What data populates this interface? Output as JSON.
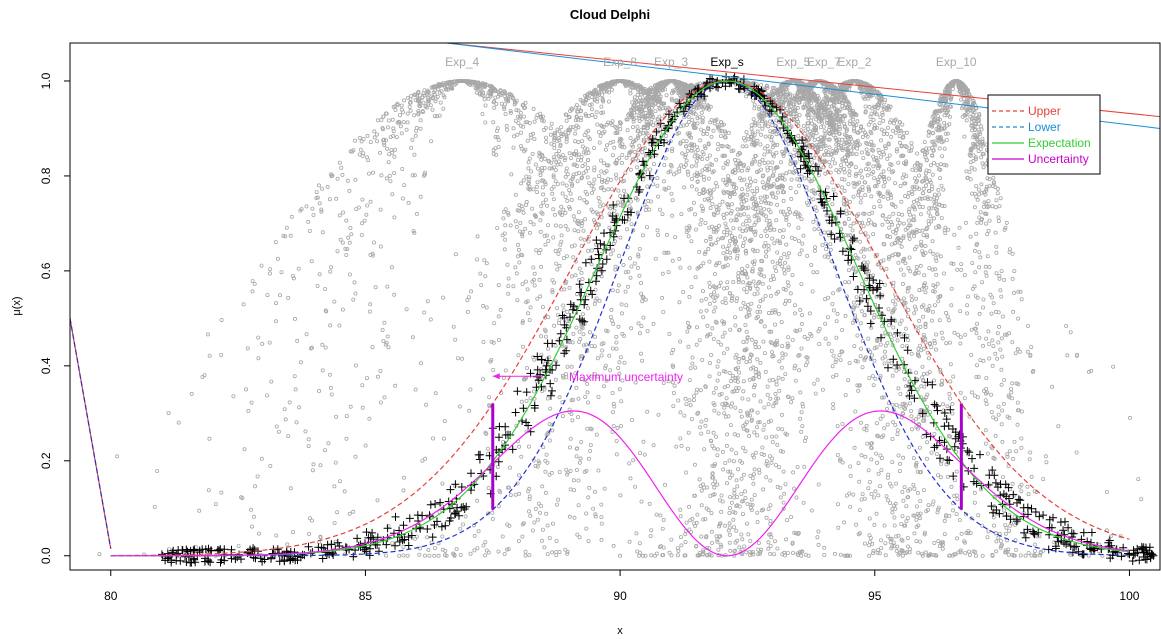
{
  "chart_data": {
    "type": "scatter",
    "title": "Cloud Delphi",
    "xlabel": "x",
    "ylabel": "μ(x)",
    "xlim": [
      79.2,
      100.6
    ],
    "ylim": [
      -0.03,
      1.08
    ],
    "x_ticks": [
      80,
      85,
      90,
      95,
      100
    ],
    "y_ticks": [
      0.0,
      0.2,
      0.4,
      0.6,
      0.8,
      1.0
    ],
    "grid": false,
    "legend_position": "top-right",
    "legend": [
      {
        "label": "Upper",
        "color": "#e8403c",
        "style": "dashed"
      },
      {
        "label": "Lower",
        "color": "#1a8fd6",
        "style": "dashed"
      },
      {
        "label": "Expectation",
        "color": "#33cc33",
        "style": "solid"
      },
      {
        "label": "Uncertainty",
        "color": "#cc00cc",
        "style": "solid"
      }
    ],
    "experts": [
      {
        "name": "Exp_4",
        "center": 86.9,
        "width": 1.9
      },
      {
        "name": "Exp_8",
        "center": 90.0,
        "width": 1.3
      },
      {
        "name": "Exp_3",
        "center": 91.0,
        "width": 1.1
      },
      {
        "name": "Exp_s",
        "center": 92.1,
        "width": 2.6
      },
      {
        "name": "Exp_5",
        "center": 93.4,
        "width": 0.9
      },
      {
        "name": "Exp_7",
        "center": 93.9,
        "width": 0.9
      },
      {
        "name": "Exp_2",
        "center": 94.6,
        "width": 1.0
      },
      {
        "name": "Exp_10",
        "center": 96.6,
        "width": 0.55
      }
    ],
    "expectation": {
      "center": 92.1,
      "width": 2.56
    },
    "upper": {
      "center": 92.1,
      "width": 3.05
    },
    "lower": {
      "center": 92.1,
      "width": 2.13
    },
    "uncertainty": {
      "center": 92.1,
      "width": 2.56,
      "peak": 0.305
    },
    "range": [
      80,
      100
    ],
    "maximum_uncertainty_x": [
      87.5,
      96.7
    ],
    "upper_line": {
      "x": [
        86.6,
        100.6
      ],
      "y": [
        1.08,
        0.925
      ]
    },
    "lower_line": {
      "x": [
        86.6,
        100.6
      ],
      "y": [
        1.08,
        0.9
      ]
    },
    "left_edge_line": {
      "x": [
        79.2,
        80.0
      ],
      "y": [
        0.5,
        0.015
      ]
    },
    "annotation": "Maximum uncertainty"
  },
  "colors": {
    "cloud": "#a8a8a8",
    "samples": "#000000",
    "upper": "#e8403c",
    "lower": "#1a8fd6",
    "upper_curve": "#e8403c",
    "lower_curve": "#2233cc",
    "expectation": "#33cc33",
    "uncertainty": "#ee22ee",
    "marker": "#aa00cc"
  }
}
